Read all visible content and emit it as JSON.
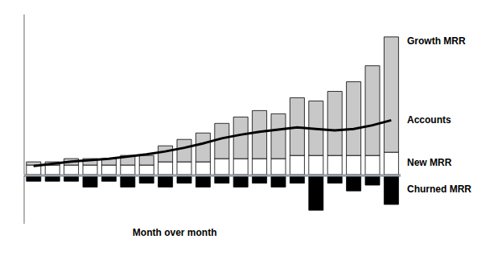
{
  "chart_data": [
    {
      "type": "bar",
      "stacked": true,
      "categories": [
        null,
        null,
        null,
        null,
        null,
        null,
        null,
        null,
        null,
        null,
        null,
        null,
        null,
        null,
        null,
        null,
        null,
        null,
        null,
        null
      ],
      "ylim": [
        0,
        25
      ],
      "tick_labels": false,
      "series": [
        {
          "name": "New MRR",
          "color": "#ffffff",
          "values": [
            1.5,
            1.5,
            1.5,
            1.5,
            1.5,
            1.5,
            1.5,
            2,
            2,
            2,
            2.5,
            2.5,
            2.5,
            2.5,
            3,
            3,
            3,
            3,
            3,
            3.5
          ]
        },
        {
          "name": "Growth MRR",
          "color": "#c8c8c8",
          "values": [
            0.5,
            0.5,
            1.0,
            1.0,
            1.0,
            1.5,
            1.5,
            2.5,
            3.5,
            4.5,
            5.5,
            6.5,
            7.5,
            7.0,
            9.0,
            8.5,
            10.0,
            11.5,
            14.0,
            18.0
          ]
        },
        {
          "name": "Accounts",
          "type": "line",
          "color": "#000000",
          "values": [
            1.36,
            1.7,
            2.04,
            2.2666667,
            2.4933333,
            2.8333333,
            3.1733333,
            3.6266667,
            4.1933333,
            4.8733333,
            5.6666667,
            6.2333333,
            6.6866667,
            7.0266667,
            7.3666667,
            7.14,
            6.9133333,
            7.14,
            7.7066667,
            8.5
          ]
        }
      ]
    },
    {
      "type": "bar",
      "categories": [
        null,
        null,
        null,
        null,
        null,
        null,
        null,
        null,
        null,
        null,
        null,
        null,
        null,
        null,
        null,
        null,
        null,
        null,
        null,
        null
      ],
      "ylim": [
        -2.5,
        0
      ],
      "tick_labels": false,
      "xlabel": "Month over month",
      "series": [
        {
          "name": "Churned MRR",
          "color": "#000000",
          "values": [
            -0.3,
            -0.3,
            -0.3,
            -0.6,
            -0.3,
            -0.6,
            -0.4,
            -0.6,
            -0.4,
            -0.6,
            -0.4,
            -0.6,
            -0.4,
            -0.6,
            -0.4,
            -1.8,
            -0.4,
            -0.8,
            -0.5,
            -1.5
          ]
        }
      ]
    }
  ]
}
